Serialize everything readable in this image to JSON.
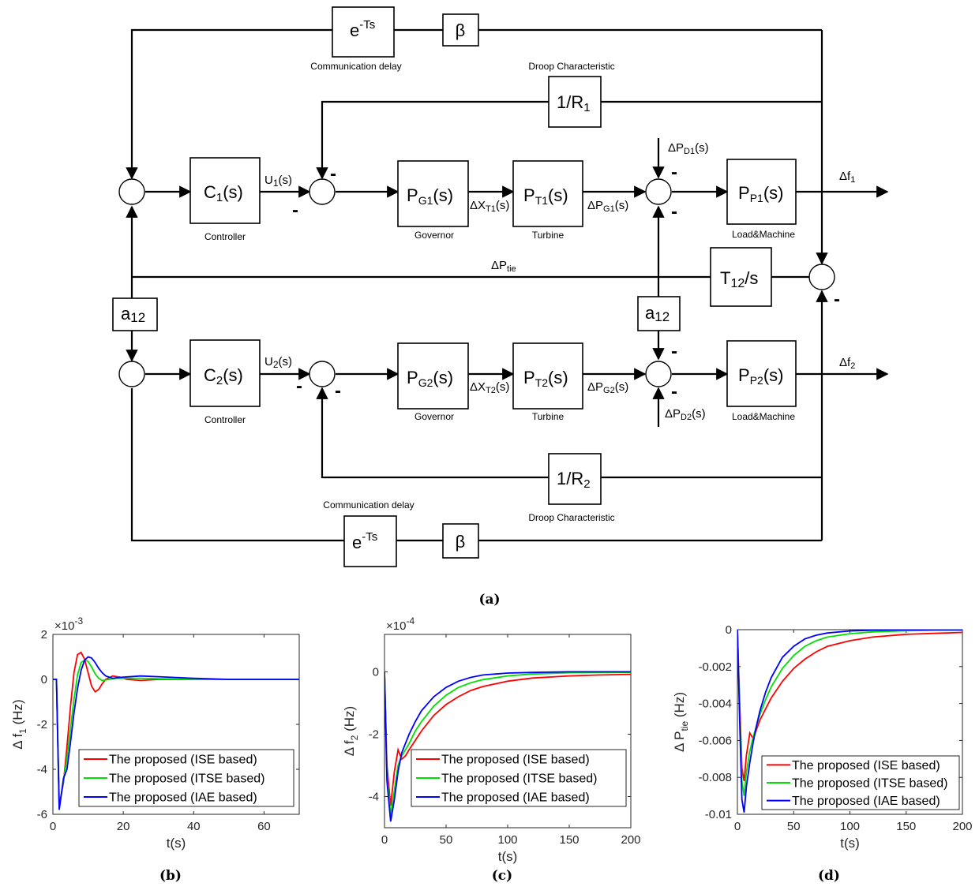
{
  "diagram": {
    "blocks": {
      "delay_top": "e",
      "delay_top_exp": "-Ts",
      "beta_top": "β",
      "droop1": "1/R",
      "droop1_sub": "1",
      "c1": "C",
      "c1_sub": "1",
      "c1_s": "(s)",
      "pg1": "P",
      "pg1_sub": "G1",
      "pg1_s": "(s)",
      "pt1": "P",
      "pt1_sub": "T1",
      "pt1_s": "(s)",
      "pp1": "P",
      "pp1_sub": "P1",
      "pp1_s": "(s)",
      "t12": "T",
      "t12_sub": "12",
      "t12_s": "/s",
      "a12_left": "a",
      "a12_left_sub": "12",
      "a12_right": "a",
      "a12_right_sub": "12",
      "c2": "C",
      "c2_sub": "2",
      "c2_s": "(s)",
      "pg2": "P",
      "pg2_sub": "G2",
      "pg2_s": "(s)",
      "pt2": "P",
      "pt2_sub": "T2",
      "pt2_s": "(s)",
      "pp2": "P",
      "pp2_sub": "P2",
      "pp2_s": "(s)",
      "droop2": "1/R",
      "droop2_sub": "2",
      "delay_bottom": "e",
      "delay_bottom_exp": "-Ts",
      "beta_bottom": "β"
    },
    "labels": {
      "communication_delay_top": "Communication delay",
      "droop_top": "Droop Characteristic",
      "controller1": "Controller",
      "governor1": "Governor",
      "turbine1": "Turbine",
      "load1": "Load&Machine",
      "controller2": "Controller",
      "governor2": "Governor",
      "turbine2": "Turbine",
      "load2": "Load&Machine",
      "communication_delay_bottom": "Communication delay",
      "droop_bottom": "Droop Characteristic"
    },
    "signals": {
      "u1": "U",
      "u1_sub": "1",
      "u1_s": "(s)",
      "dxt1": "ΔX",
      "dxt1_sub": "T1",
      "dxt1_s": "(s)",
      "dpg1": "ΔP",
      "dpg1_sub": "G1",
      "dpg1_s": "(s)",
      "dpd1": "ΔP",
      "dpd1_sub": "D1",
      "dpd1_s": "(s)",
      "df1": "Δf",
      "df1_sub": "1",
      "dptie": "ΔP",
      "dptie_sub": "tie",
      "u2": "U",
      "u2_sub": "2",
      "u2_s": "(s)",
      "dxt2": "ΔX",
      "dxt2_sub": "T2",
      "dxt2_s": "(s)",
      "dpg2": "ΔP",
      "dpg2_sub": "G2",
      "dpg2_s": "(s)",
      "dpd2": "ΔP",
      "dpd2_sub": "D2",
      "dpd2_s": "(s)",
      "df2": "Δf",
      "df2_sub": "2"
    },
    "minus": "-",
    "caption": "(a)"
  },
  "chart_data": [
    {
      "type": "line",
      "caption": "(b)",
      "xlabel": "t(s)",
      "ylabel": "Δ f",
      "ylabel_sub": "1",
      "ylabel_unit": " (Hz)",
      "exponent_prefix": "×10",
      "exponent": "-3",
      "xlim": [
        0,
        70
      ],
      "ylim": [
        -6,
        2
      ],
      "xticks": [
        "0",
        "20",
        "40",
        "60"
      ],
      "yticks": [
        "-6",
        "-4",
        "-2",
        "0",
        "2"
      ],
      "legend_position": "bottom",
      "series": [
        {
          "name": "The proposed (ISE based)",
          "color": "#ff0000",
          "x": [
            0,
            1,
            1.8,
            3,
            4,
            5,
            6,
            7,
            8,
            9,
            10,
            11,
            12,
            13,
            14,
            15,
            17,
            19,
            21,
            25,
            30,
            40,
            50,
            60,
            70
          ],
          "y": [
            0,
            0,
            -5.6,
            -4.6,
            -3.0,
            -1.2,
            0.3,
            1.1,
            1.2,
            0.9,
            0.3,
            -0.3,
            -0.55,
            -0.45,
            -0.2,
            0,
            0.15,
            0.1,
            0,
            -0.05,
            0,
            0,
            0,
            0,
            0
          ]
        },
        {
          "name": "The proposed (ITSE based)",
          "color": "#00e000",
          "x": [
            0,
            1,
            1.8,
            3,
            4,
            5,
            6,
            7,
            8,
            9,
            10,
            11,
            12,
            13,
            14,
            16,
            18,
            20,
            25,
            30,
            40,
            50,
            60,
            70
          ],
          "y": [
            0,
            0,
            -5.7,
            -4.5,
            -3.5,
            -2.2,
            -0.9,
            0.2,
            0.75,
            0.85,
            0.8,
            0.55,
            0.25,
            0.05,
            -0.05,
            0,
            0.05,
            0.05,
            0.05,
            0.03,
            0,
            0,
            0,
            0
          ]
        },
        {
          "name": "The proposed (IAE based)",
          "color": "#0000ff",
          "x": [
            0,
            1,
            1.8,
            3,
            4,
            5,
            6,
            7,
            8,
            9,
            10,
            11,
            12,
            13,
            14,
            15,
            17,
            20,
            25,
            30,
            40,
            50,
            60,
            70
          ],
          "y": [
            0,
            0,
            -5.8,
            -4.4,
            -4.0,
            -2.8,
            -1.5,
            -0.4,
            0.4,
            0.85,
            1.0,
            0.95,
            0.75,
            0.5,
            0.3,
            0.15,
            0.05,
            0.1,
            0.15,
            0.12,
            0.05,
            0,
            0,
            0
          ]
        }
      ]
    },
    {
      "type": "line",
      "caption": "(c)",
      "xlabel": "t(s)",
      "ylabel": "Δ f",
      "ylabel_sub": "2",
      "ylabel_unit": " (Hz)",
      "exponent_prefix": "×10",
      "exponent": "-4",
      "xlim": [
        0,
        200
      ],
      "ylim": [
        -5,
        1.2
      ],
      "xticks": [
        "0",
        "50",
        "100",
        "150",
        "200"
      ],
      "yticks": [
        "-4",
        "-2",
        "0"
      ],
      "legend_position": "bottom",
      "series": [
        {
          "name": "The proposed (ISE based)",
          "color": "#ff0000",
          "x": [
            0,
            2,
            5,
            8,
            11,
            14,
            17,
            20,
            25,
            30,
            40,
            50,
            60,
            70,
            80,
            100,
            120,
            150,
            175,
            200
          ],
          "y": [
            0,
            -3.0,
            -4.3,
            -3.2,
            -2.5,
            -2.8,
            -2.7,
            -2.5,
            -2.2,
            -1.9,
            -1.4,
            -1.05,
            -0.8,
            -0.6,
            -0.47,
            -0.3,
            -0.2,
            -0.13,
            -0.1,
            -0.08
          ]
        },
        {
          "name": "The proposed (ITSE based)",
          "color": "#00e000",
          "x": [
            0,
            2,
            5,
            8,
            11,
            14,
            17,
            20,
            25,
            30,
            40,
            50,
            60,
            70,
            80,
            100,
            120,
            150,
            175,
            200
          ],
          "y": [
            0,
            -3.3,
            -4.6,
            -3.8,
            -3.0,
            -2.7,
            -2.5,
            -2.3,
            -1.9,
            -1.6,
            -1.1,
            -0.75,
            -0.5,
            -0.35,
            -0.25,
            -0.13,
            -0.07,
            -0.03,
            -0.02,
            -0.02
          ]
        },
        {
          "name": "The proposed (IAE based)",
          "color": "#0000ff",
          "x": [
            0,
            2,
            5,
            8,
            11,
            14,
            17,
            20,
            25,
            30,
            40,
            50,
            60,
            70,
            80,
            100,
            120,
            150,
            175,
            200
          ],
          "y": [
            0,
            -3.5,
            -4.8,
            -4.1,
            -3.2,
            -2.6,
            -2.3,
            -2.0,
            -1.6,
            -1.25,
            -0.8,
            -0.5,
            -0.3,
            -0.18,
            -0.1,
            -0.04,
            -0.02,
            0,
            0,
            0
          ]
        }
      ]
    },
    {
      "type": "line",
      "caption": "(d)",
      "xlabel": "t(s)",
      "ylabel": "Δ P",
      "ylabel_sub": "tie",
      "ylabel_unit": " (Hz)",
      "xlim": [
        0,
        200
      ],
      "ylim": [
        -0.01,
        0
      ],
      "xticks": [
        "0",
        "50",
        "100",
        "150",
        "200"
      ],
      "yticks": [
        "-0.01",
        "-0.008",
        "-0.006",
        "-0.004",
        "-0.002",
        "0"
      ],
      "legend_position": "bottom",
      "series": [
        {
          "name": "The proposed (ISE based)",
          "color": "#ff0000",
          "x": [
            0,
            2,
            4,
            6,
            8,
            11,
            14,
            17,
            20,
            25,
            30,
            40,
            50,
            60,
            70,
            80,
            100,
            120,
            150,
            175,
            200
          ],
          "y": [
            0,
            -0.004,
            -0.0075,
            -0.0082,
            -0.0068,
            -0.0056,
            -0.0059,
            -0.0054,
            -0.0049,
            -0.0043,
            -0.0037,
            -0.0028,
            -0.0021,
            -0.0016,
            -0.0012,
            -0.0009,
            -0.0006,
            -0.0004,
            -0.00025,
            -0.0002,
            -0.00015
          ]
        },
        {
          "name": "The proposed (ITSE based)",
          "color": "#00e000",
          "x": [
            0,
            2,
            4,
            6,
            8,
            11,
            14,
            17,
            20,
            25,
            30,
            40,
            50,
            60,
            70,
            80,
            100,
            120,
            150,
            175,
            200
          ],
          "y": [
            0,
            -0.0045,
            -0.0082,
            -0.009,
            -0.0077,
            -0.0066,
            -0.0058,
            -0.0052,
            -0.0046,
            -0.0038,
            -0.0031,
            -0.0021,
            -0.0014,
            -0.0009,
            -0.0006,
            -0.0004,
            -0.00022,
            -0.00012,
            -6e-05,
            -4e-05,
            -3e-05
          ]
        },
        {
          "name": "The proposed (IAE based)",
          "color": "#0000ff",
          "x": [
            0,
            2,
            4,
            6,
            8,
            11,
            14,
            17,
            20,
            25,
            30,
            40,
            50,
            60,
            70,
            80,
            100,
            120,
            150,
            175,
            200
          ],
          "y": [
            0,
            -0.005,
            -0.0092,
            -0.0099,
            -0.0085,
            -0.0072,
            -0.0061,
            -0.0052,
            -0.0044,
            -0.0034,
            -0.0026,
            -0.0015,
            -0.0009,
            -0.0005,
            -0.0003,
            -0.00018,
            -7e-05,
            -3e-05,
            -1e-05,
            0,
            0
          ]
        }
      ]
    }
  ]
}
